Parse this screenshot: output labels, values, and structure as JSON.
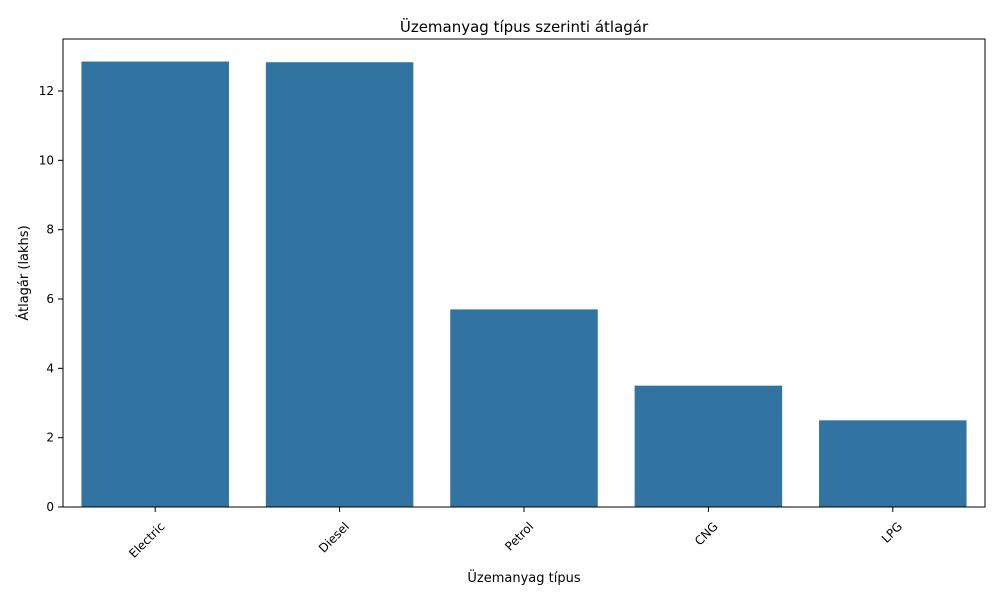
{
  "chart_data": {
    "type": "bar",
    "title": "Üzemanyag típus szerinti átlagár",
    "xlabel": "Üzemanyag típus",
    "ylabel": "Átlagár (lakhs)",
    "categories": [
      "Electric",
      "Diesel",
      "Petrol",
      "CNG",
      "LPG"
    ],
    "values": [
      12.85,
      12.83,
      5.7,
      3.5,
      2.5
    ],
    "ylim": [
      0,
      13.5
    ],
    "yticks": [
      0,
      2,
      4,
      6,
      8,
      10,
      12
    ],
    "bar_color": "#3274a1",
    "grid": false,
    "legend": "none"
  }
}
